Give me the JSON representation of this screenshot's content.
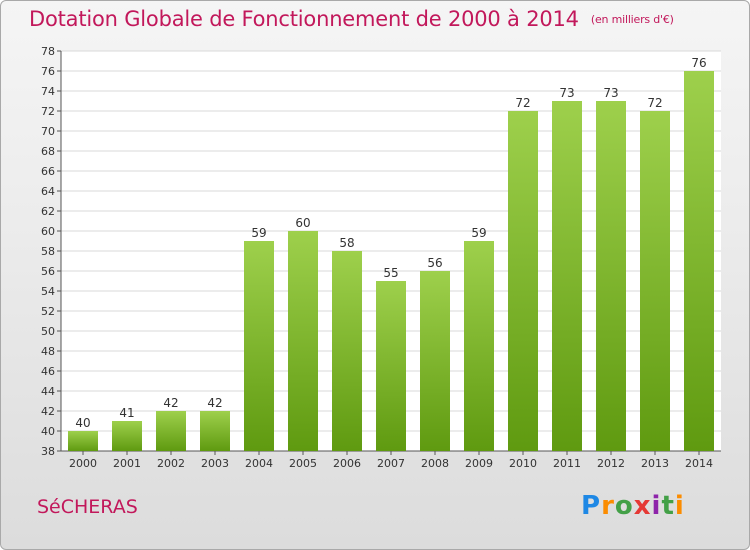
{
  "title": "Dotation Globale de Fonctionnement de 2000 à 2014",
  "subtitle": "(en milliers d'€)",
  "commune": "SéCHERAS",
  "logo_text": "Proxiti",
  "colors": {
    "title": "#c2185b",
    "bar_top": "#9ed04c",
    "bar_bottom": "#5f9a10"
  },
  "chart_data": {
    "type": "bar",
    "title": "Dotation Globale de Fonctionnement de 2000 à 2014",
    "subtitle": "(en milliers d'€)",
    "categories": [
      "2000",
      "2001",
      "2002",
      "2003",
      "2004",
      "2005",
      "2006",
      "2007",
      "2008",
      "2009",
      "2010",
      "2011",
      "2012",
      "2013",
      "2014"
    ],
    "values": [
      40,
      41,
      42,
      42,
      59,
      60,
      58,
      55,
      56,
      59,
      72,
      73,
      73,
      72,
      76
    ],
    "ylim": [
      38,
      78
    ],
    "yticks": [
      38,
      40,
      42,
      44,
      46,
      48,
      50,
      52,
      54,
      56,
      58,
      60,
      62,
      64,
      66,
      68,
      70,
      72,
      74,
      76,
      78
    ],
    "xlabel": "",
    "ylabel": "",
    "grid": true
  }
}
